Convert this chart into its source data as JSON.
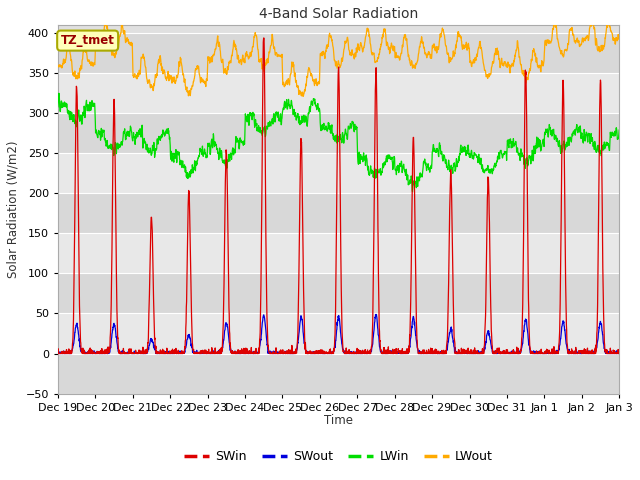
{
  "title": "4-Band Solar Radiation",
  "ylabel": "Solar Radiation (W/m2)",
  "xlabel": "Time",
  "annotation": "TZ_tmet",
  "ylim": [
    -50,
    410
  ],
  "yticks": [
    -50,
    0,
    50,
    100,
    150,
    200,
    250,
    300,
    350,
    400
  ],
  "background_color": "#ffffff",
  "plot_bg_color": "#e0e0e0",
  "grid_color": "#ffffff",
  "band_colors": [
    "#d8d8d8",
    "#e8e8e8"
  ],
  "colors": {
    "SWin": "#dd0000",
    "SWout": "#0000dd",
    "LWin": "#00dd00",
    "LWout": "#ffaa00"
  },
  "n_days": 15,
  "x_tick_labels": [
    "Dec 19",
    "Dec 20",
    "Dec 21",
    "Dec 22",
    "Dec 23",
    "Dec 24",
    "Dec 25",
    "Dec 26",
    "Dec 27",
    "Dec 28",
    "Dec 29",
    "Dec 30",
    "Dec 31",
    "Jan 1",
    "Jan 2",
    "Jan 3"
  ],
  "legend_labels": [
    "SWin",
    "SWout",
    "LWin",
    "LWout"
  ]
}
